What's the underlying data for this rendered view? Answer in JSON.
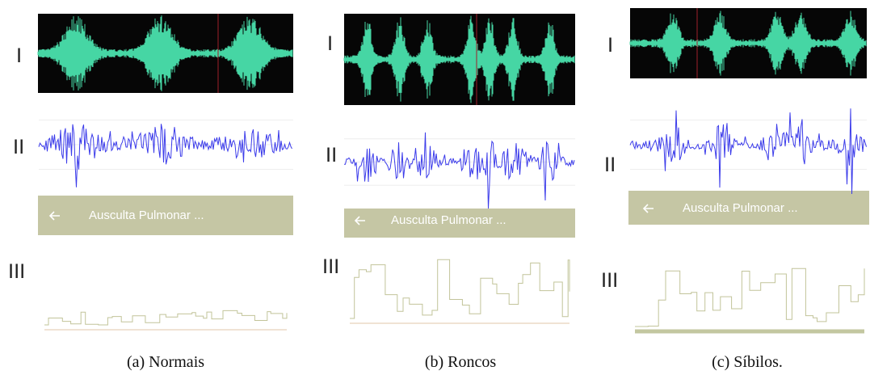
{
  "panels": [
    {
      "labels": [
        "I",
        "II",
        "III"
      ],
      "app_bar_title": "Ausculta Pulmonar ...",
      "caption": "(a)  Normais"
    },
    {
      "labels": [
        "I",
        "II",
        "III"
      ],
      "app_bar_title": "Ausculta Pulmonar ...",
      "caption": "(b)  Roncos"
    },
    {
      "labels": [
        "I",
        "II",
        "III"
      ],
      "app_bar_title": "Ausculta Pulmonar ...",
      "caption": "(c)  Síbilos."
    }
  ]
}
